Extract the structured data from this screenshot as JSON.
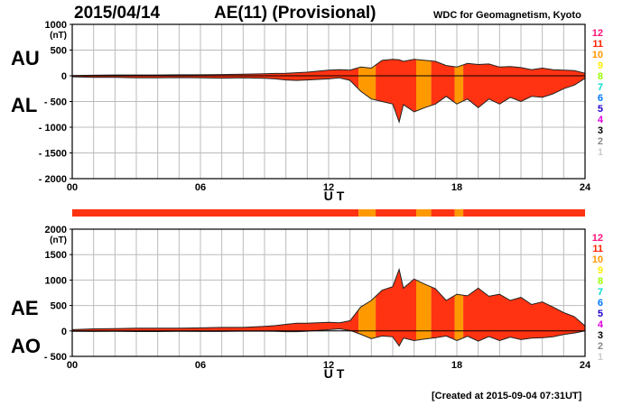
{
  "header": {
    "date": "2015/04/14",
    "title": "AE(11) (Provisional)",
    "source": "WDC for Geomagnetism, Kyoto"
  },
  "footer": {
    "created": "[Created at 2015-09-04 07:31UT]"
  },
  "palette": {
    "fill_red": "#ff3311",
    "fill_orange": "#ff9900",
    "outline": "#222222",
    "grid": "#bbbbbb"
  },
  "legend": {
    "counts": [
      {
        "label": "12",
        "color": "#ff1177"
      },
      {
        "label": "11",
        "color": "#ff2200"
      },
      {
        "label": "10",
        "color": "#ff9900"
      },
      {
        "label": "9",
        "color": "#ffee00"
      },
      {
        "label": "8",
        "color": "#99ff00"
      },
      {
        "label": "7",
        "color": "#00ddcc"
      },
      {
        "label": "6",
        "color": "#0077ff"
      },
      {
        "label": "5",
        "color": "#2200cc"
      },
      {
        "label": "4",
        "color": "#dd00dd"
      },
      {
        "label": "3",
        "color": "#000000"
      },
      {
        "label": "2",
        "color": "#888888"
      },
      {
        "label": "1",
        "color": "#cccccc"
      }
    ]
  },
  "chart_data": [
    {
      "type": "area",
      "title": "AU / AL",
      "series_labels": [
        "AU",
        "AL"
      ],
      "xlabel": "U T",
      "x_ticks": [
        "00",
        "06",
        "12",
        "18",
        "24"
      ],
      "xlim": [
        0,
        24
      ],
      "ylim": [
        -2000,
        1000
      ],
      "y_ticks": [
        "1000",
        "500",
        "0",
        "- 500",
        "- 1000",
        "- 1500",
        "- 2000"
      ],
      "y_unit": "(nT)",
      "hours": [
        0,
        1,
        2,
        3,
        4,
        5,
        6,
        7,
        8,
        9,
        9.5,
        10,
        10.5,
        11,
        11.5,
        12,
        12.5,
        13,
        13.5,
        14,
        14.5,
        15,
        15.3,
        15.5,
        16,
        16.5,
        17,
        17.5,
        18,
        18.5,
        19,
        19.5,
        20,
        20.5,
        21,
        21.5,
        22,
        22.5,
        23,
        23.5,
        24
      ],
      "au": [
        5,
        10,
        15,
        15,
        15,
        20,
        20,
        25,
        30,
        40,
        45,
        50,
        60,
        70,
        90,
        110,
        120,
        110,
        170,
        150,
        300,
        320,
        310,
        280,
        320,
        300,
        280,
        200,
        170,
        240,
        220,
        230,
        170,
        180,
        160,
        120,
        150,
        120,
        110,
        100,
        50
      ],
      "al": [
        -20,
        -30,
        -30,
        -40,
        -40,
        -35,
        -40,
        -45,
        -40,
        -50,
        -60,
        -80,
        -90,
        -80,
        -70,
        -60,
        -40,
        -90,
        -300,
        -450,
        -500,
        -550,
        -900,
        -560,
        -700,
        -620,
        -550,
        -400,
        -550,
        -450,
        -620,
        -450,
        -550,
        -420,
        -500,
        -400,
        -420,
        -350,
        -250,
        -180,
        -50
      ]
    },
    {
      "type": "area",
      "title": "AE / AO",
      "series_labels": [
        "AE",
        "AO"
      ],
      "xlabel": "U T",
      "x_ticks": [
        "00",
        "06",
        "12",
        "18",
        "24"
      ],
      "xlim": [
        0,
        24
      ],
      "ylim": [
        -500,
        2000
      ],
      "y_ticks": [
        "2000",
        "1500",
        "1000",
        "500",
        "0",
        "- 500"
      ],
      "y_unit": "(nT)",
      "hours": [
        0,
        1,
        2,
        3,
        4,
        5,
        6,
        7,
        8,
        9,
        9.5,
        10,
        10.5,
        11,
        11.5,
        12,
        12.5,
        13,
        13.5,
        14,
        14.5,
        15,
        15.3,
        15.5,
        16,
        16.5,
        17,
        17.5,
        18,
        18.5,
        19,
        19.5,
        20,
        20.5,
        21,
        21.5,
        22,
        22.5,
        23,
        23.5,
        24
      ],
      "ae": [
        25,
        40,
        45,
        55,
        55,
        55,
        60,
        70,
        70,
        90,
        105,
        130,
        150,
        150,
        160,
        170,
        160,
        200,
        470,
        600,
        800,
        870,
        1210,
        840,
        1020,
        920,
        830,
        600,
        720,
        690,
        840,
        680,
        720,
        600,
        660,
        520,
        570,
        470,
        360,
        280,
        100
      ],
      "ao": [
        -8,
        -10,
        -8,
        -13,
        -13,
        -8,
        -10,
        -10,
        -5,
        -5,
        -8,
        -15,
        -15,
        -5,
        10,
        25,
        40,
        10,
        -65,
        -150,
        -100,
        -115,
        -295,
        -140,
        -190,
        -160,
        -135,
        -100,
        -190,
        -105,
        -200,
        -110,
        -190,
        -120,
        -170,
        -140,
        -135,
        -115,
        -70,
        -40,
        0
      ]
    }
  ],
  "station_bar": {
    "segments": [
      {
        "from": 0,
        "to": 13.4,
        "count": 11
      },
      {
        "from": 13.4,
        "to": 14.2,
        "count": 10
      },
      {
        "from": 14.2,
        "to": 16.1,
        "count": 11
      },
      {
        "from": 16.1,
        "to": 16.8,
        "count": 10
      },
      {
        "from": 16.8,
        "to": 17.9,
        "count": 11
      },
      {
        "from": 17.9,
        "to": 18.3,
        "count": 10
      },
      {
        "from": 18.3,
        "to": 24,
        "count": 11
      }
    ]
  }
}
